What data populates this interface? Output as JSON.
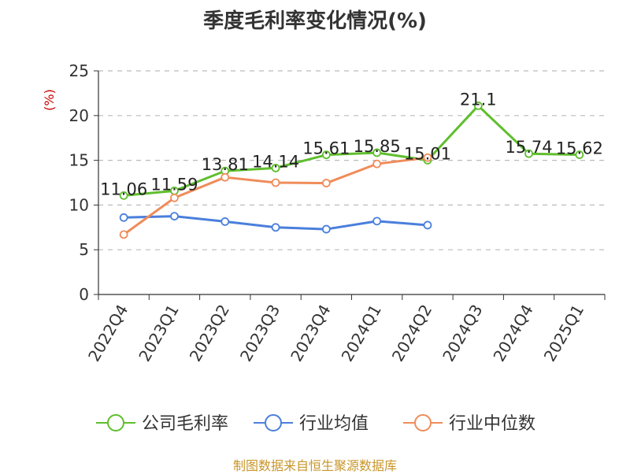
{
  "title": "季度毛利率变化情况(%)",
  "source": "制图数据来自恒生聚源数据库",
  "colors": {
    "company": "#5fbe2d",
    "industry_avg": "#4a7fdc",
    "industry_median": "#f08c5a",
    "grid": "#bbbbbb",
    "axis": "#333333"
  },
  "chart_data": {
    "type": "line",
    "title": "季度毛利率变化情况(%)",
    "xlabel": "",
    "ylabel": "(%)",
    "ylim": [
      0,
      25
    ],
    "yticks": [
      0,
      5,
      10,
      15,
      20,
      25
    ],
    "grid": true,
    "legend_position": "bottom",
    "categories": [
      "2022Q4",
      "2023Q1",
      "2023Q2",
      "2023Q3",
      "2023Q4",
      "2024Q1",
      "2024Q2",
      "2024Q3",
      "2024Q4",
      "2025Q1"
    ],
    "series": [
      {
        "name": "公司毛利率",
        "color": "#5fbe2d",
        "values": [
          11.06,
          11.59,
          13.81,
          14.14,
          15.61,
          15.85,
          15.01,
          21.1,
          15.74,
          15.62
        ],
        "labels": [
          "11.06",
          "11.59",
          "13.81",
          "14.14",
          "15.61",
          "15.85",
          "15.01",
          "21.1",
          "15.74",
          "15.62"
        ]
      },
      {
        "name": "行业均值",
        "color": "#4a7fdc",
        "values": [
          8.6,
          8.75,
          8.15,
          7.5,
          7.3,
          8.2,
          7.75,
          null,
          null,
          null
        ]
      },
      {
        "name": "行业中位数",
        "color": "#f08c5a",
        "values": [
          6.7,
          10.8,
          13.1,
          12.5,
          12.45,
          14.6,
          15.3,
          null,
          null,
          null
        ]
      }
    ]
  }
}
